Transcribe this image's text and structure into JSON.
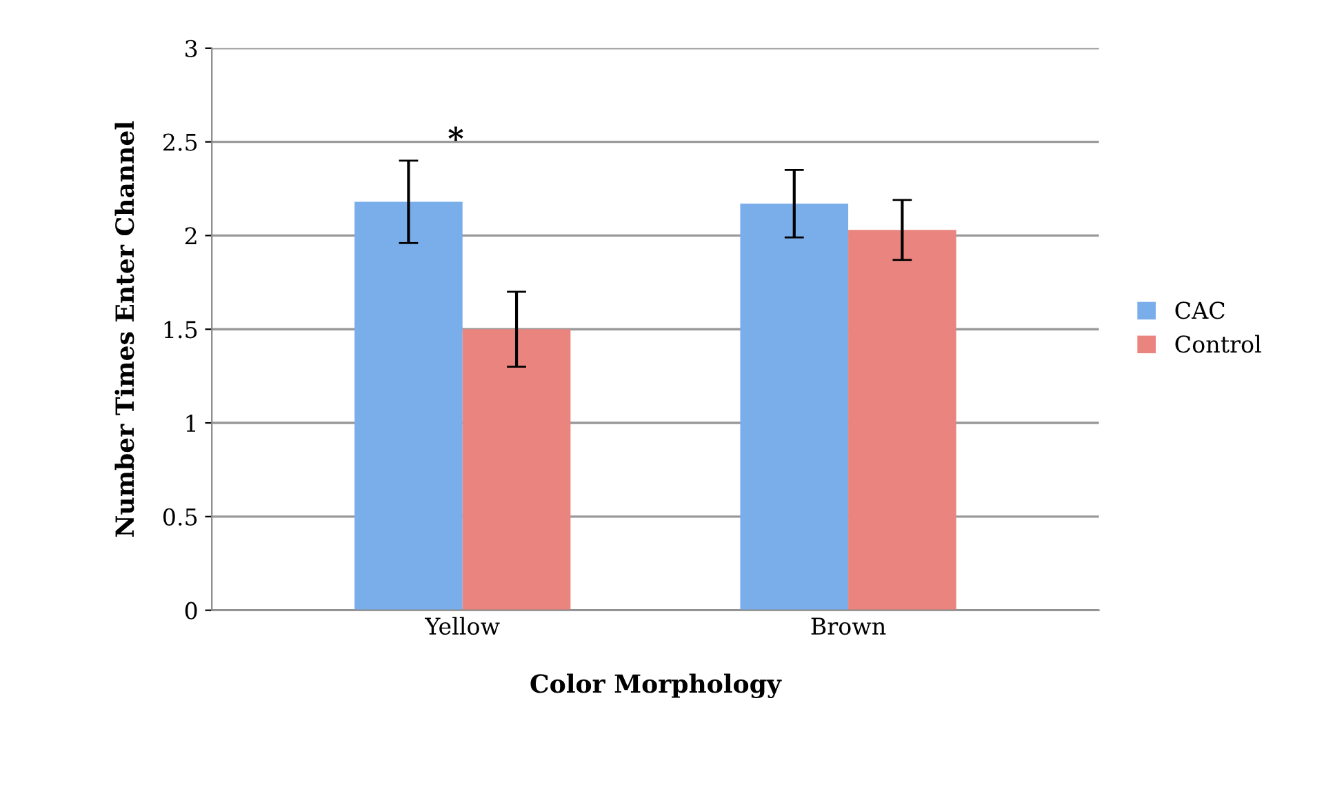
{
  "chart_data": {
    "type": "bar",
    "xlabel": "Color Morphology",
    "ylabel": "Number Times Enter Channel",
    "categories": [
      "Yellow",
      "Brown"
    ],
    "series": [
      {
        "name": "CAC",
        "color": "#7aaeea",
        "values": [
          2.18,
          2.17
        ],
        "errors": [
          0.22,
          0.18
        ]
      },
      {
        "name": "Control",
        "color": "#ea847e",
        "values": [
          1.5,
          2.03
        ],
        "errors": [
          0.2,
          0.16
        ]
      }
    ],
    "ylim": [
      0,
      3
    ],
    "yticks": [
      0,
      0.5,
      1,
      1.5,
      2,
      2.5,
      3
    ],
    "grid": "y",
    "legend": "right",
    "annotations": [
      "*"
    ]
  }
}
